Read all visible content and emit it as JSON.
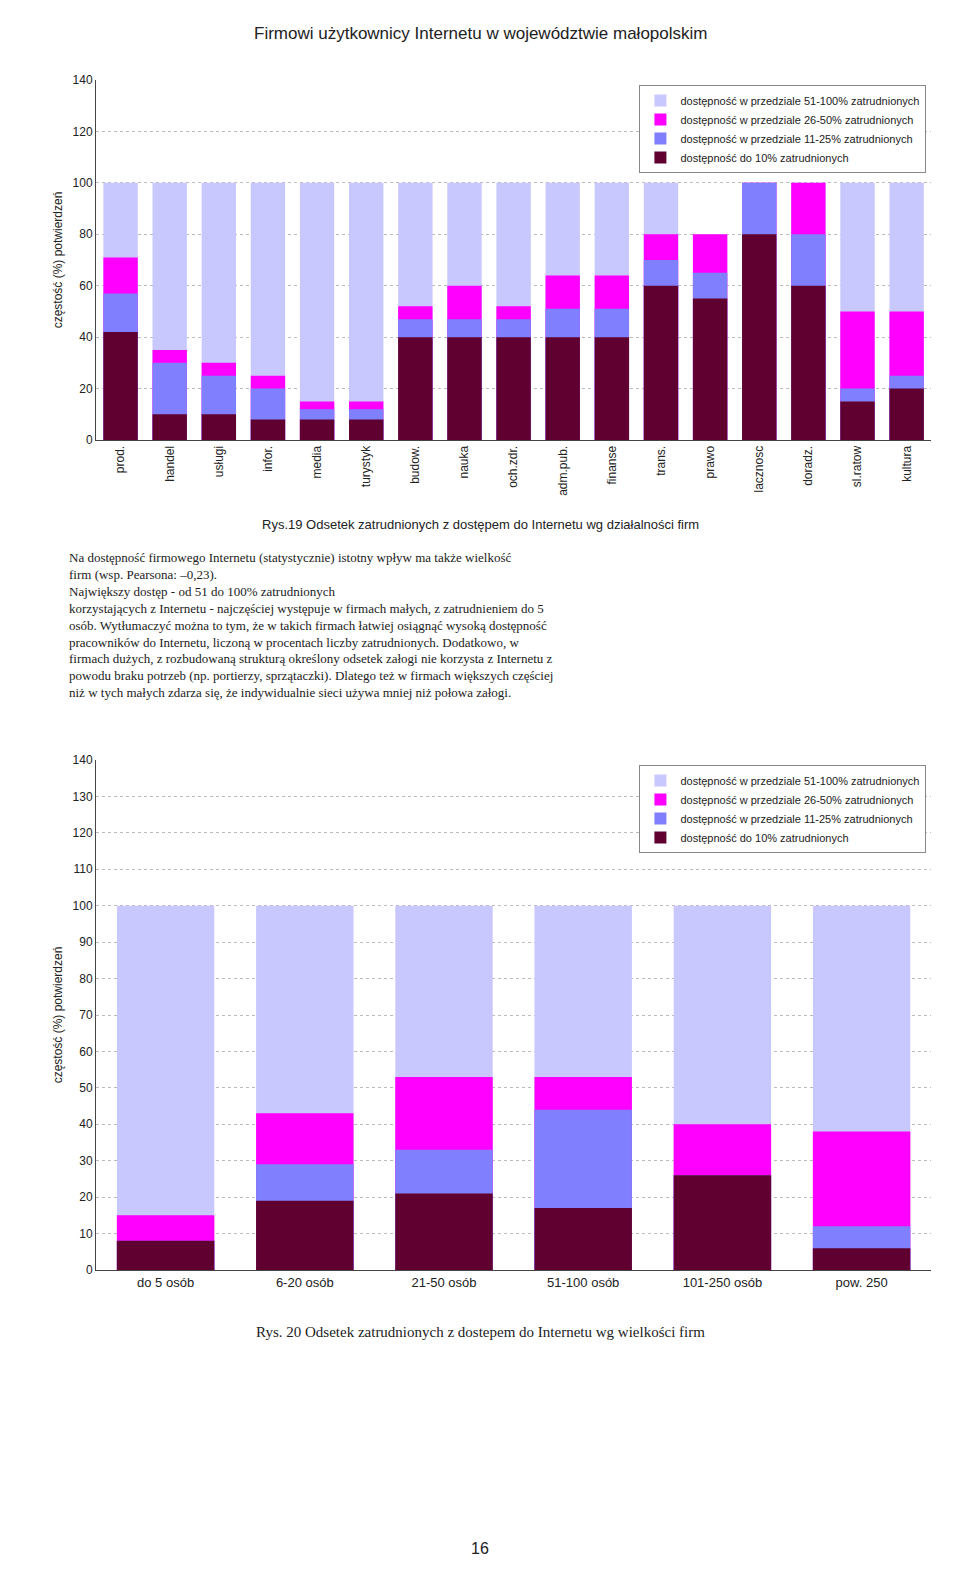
{
  "title": "Firmowi użytkownicy Internetu w województwie małopolskim",
  "text": "Na dostępność firmowego Internetu (statystycznie) istotny wpływ ma także wielkość\nfirm (wsp. Pearsona: –0,23).\nNajwiększy dostęp - od 51 do 100% zatrudnionych\nkorzystających z Internetu - najczęściej występuje w firmach małych, z zatrudnieniem do 5\nosób. Wytłumaczyć można to tym, że w takich firmach łatwiej osiągnąć wysoką dostępność\npracowników do Internetu, liczoną w procentach liczby zatrudnionych. Dodatkowo, w\nfirmach dużych, z rozbudowaną strukturą określony odsetek załogi nie korzysta z Internetu z\npowodu braku potrzeb (np. portierzy, sprzątaczki). Dlatego też w firmach większych częściej\nniż w tych małych zdarza się, że indywidualnie sieci używa mniej niż połowa załogi.",
  "page_number": "16",
  "chart_data": [
    {
      "type": "bar",
      "title": "Rys.19 Odsetek zatrudnionych z dostępem do Internetu wg działalności firm",
      "ylabel": "częstość (%) potwierdzeń",
      "categories": [
        "prod.",
        "handel",
        "usługi",
        "infor.",
        "media",
        "turystyk",
        "budow.",
        "nauka",
        "och.zdr.",
        "adm.pub.",
        "finanse",
        "trans.",
        "prawo",
        "lacznosc",
        "doradz.",
        "sl.ratow",
        "kultura"
      ],
      "series": [
        {
          "name": "dostępność w przedziale 51-100% zatrudnionych",
          "color": "#c8c8ff",
          "values": [
            100,
            100,
            100,
            100,
            100,
            100,
            100,
            100,
            100,
            100,
            100,
            100,
            80,
            100,
            100,
            100,
            100
          ]
        },
        {
          "name": "dostępność w przedziale 26-50% zatrudnionych",
          "color": "#ff00ff",
          "values": [
            71,
            35,
            30,
            25,
            15,
            15,
            52,
            60,
            52,
            64,
            64,
            80,
            80,
            100,
            100,
            50,
            50
          ]
        },
        {
          "name": "dostępność w przedziale 11-25% zatrudnionych",
          "color": "#8080ff",
          "values": [
            57,
            30,
            25,
            20,
            12,
            12,
            47,
            47,
            47,
            51,
            51,
            70,
            65,
            100,
            80,
            20,
            25
          ]
        },
        {
          "name": "dostępność do 10% zatrudnionych",
          "color": "#600030",
          "values": [
            42,
            10,
            10,
            8,
            8,
            8,
            40,
            40,
            40,
            40,
            40,
            60,
            55,
            80,
            60,
            15,
            20
          ]
        }
      ],
      "ylim": [
        0,
        140
      ],
      "yticks": [
        0,
        20,
        40,
        60,
        80,
        100,
        120,
        140
      ],
      "grid": true,
      "legend": "upper right",
      "stacked": false
    },
    {
      "type": "bar",
      "title": "Rys. 20 Odsetek zatrudnionych z dostepem do Internetu wg wielkości firm",
      "ylabel": "częstość (%) potwierdzeń",
      "categories": [
        "do 5 osób",
        "6-20 osób",
        "21-50 osób",
        "51-100 osób",
        "101-250 osób",
        "pow. 250"
      ],
      "series": [
        {
          "name": "dostępność w przedziale 51-100% zatrudnionych",
          "color": "#c8c8ff",
          "values": [
            100,
            100,
            100,
            100,
            100,
            100
          ]
        },
        {
          "name": "dostępność w przedziale 26-50% zatrudnionych",
          "color": "#ff00ff",
          "values": [
            15,
            43,
            53,
            53,
            40,
            38
          ]
        },
        {
          "name": "dostępność w przedziale 11-25% zatrudnionych",
          "color": "#8080ff",
          "values": [
            8,
            29,
            33,
            44,
            26,
            12
          ]
        },
        {
          "name": "dostępność do 10% zatrudnionych",
          "color": "#600030",
          "values": [
            8,
            19,
            21,
            17,
            26,
            6
          ]
        }
      ],
      "ylim": [
        0,
        140
      ],
      "yticks": [
        0,
        10,
        20,
        30,
        40,
        50,
        60,
        70,
        80,
        90,
        100,
        110,
        120,
        130,
        140
      ],
      "grid": true,
      "legend": "upper right",
      "stacked": false
    }
  ]
}
